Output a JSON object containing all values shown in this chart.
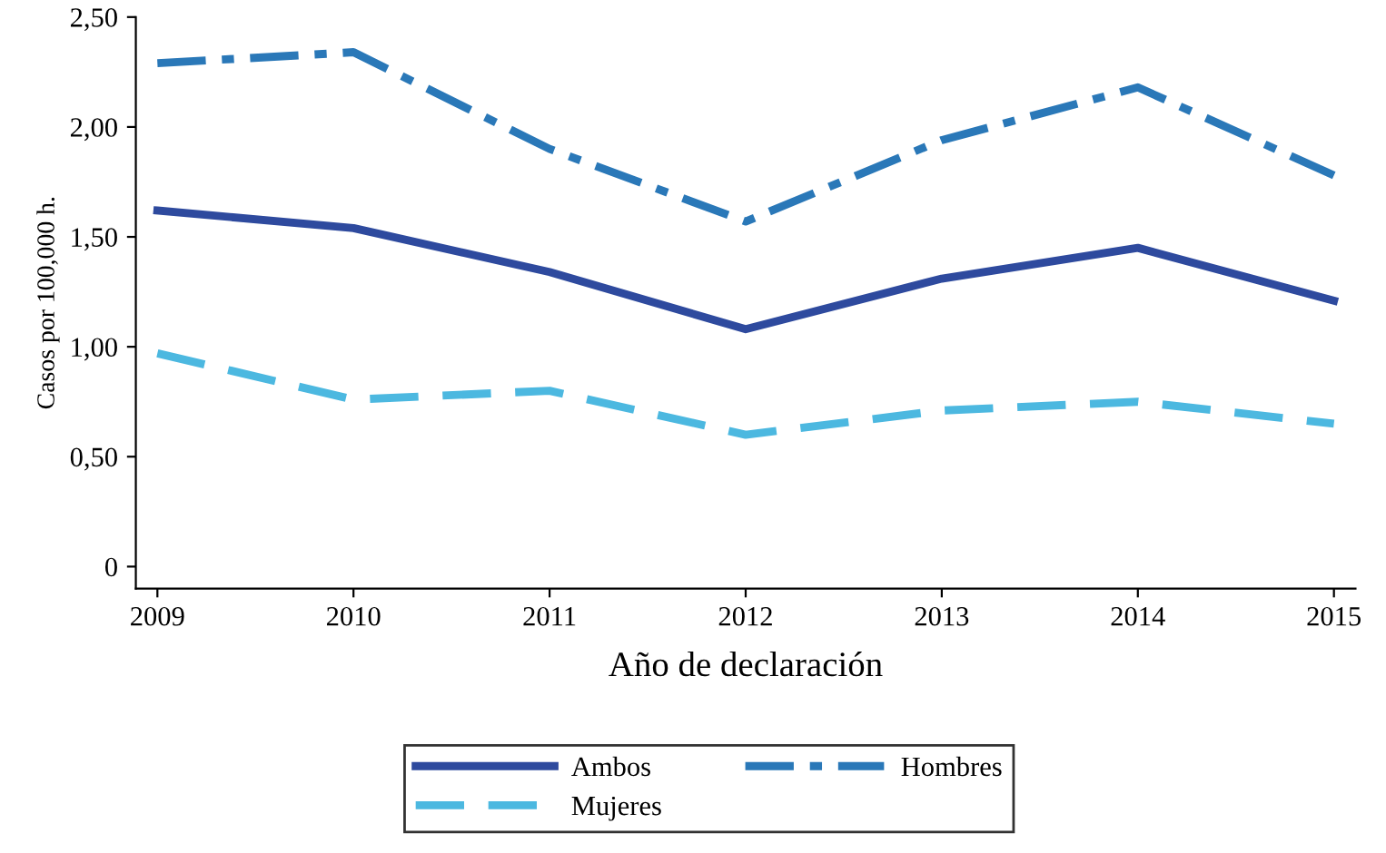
{
  "chart_data": {
    "type": "line",
    "xlabel": "Año de declaración",
    "ylabel": "Casos por 100,000 h.",
    "x": [
      2009,
      2010,
      2011,
      2012,
      2013,
      2014,
      2015
    ],
    "xlim": [
      2008.89,
      2015.11
    ],
    "xticks": [
      2009,
      2010,
      2011,
      2012,
      2013,
      2014,
      2015
    ],
    "ylim": [
      -0.1,
      2.5
    ],
    "yticks": [
      {
        "value": 0,
        "label": "0"
      },
      {
        "value": 0.5,
        "label": "0,50"
      },
      {
        "value": 1,
        "label": "1,00"
      },
      {
        "value": 1.5,
        "label": "1,50"
      },
      {
        "value": 2,
        "label": "2,00"
      },
      {
        "value": 2.5,
        "label": "2,50"
      }
    ],
    "grid": false,
    "legend": "bottom",
    "marker": "none",
    "series": [
      {
        "name": "Ambos",
        "color": "#2e4a9e",
        "line_style": "solid",
        "values": [
          1.62,
          1.54,
          1.34,
          1.08,
          1.31,
          1.45,
          1.21
        ]
      },
      {
        "name": "Hombres",
        "color": "#2a78b8",
        "line_style": "dashdot",
        "values": [
          2.29,
          2.34,
          1.9,
          1.57,
          1.94,
          2.18,
          1.78
        ]
      },
      {
        "name": "Mujeres",
        "color": "#4cb8e0",
        "line_style": "dashed",
        "values": [
          0.97,
          0.76,
          0.8,
          0.6,
          0.71,
          0.75,
          0.65
        ]
      }
    ]
  }
}
